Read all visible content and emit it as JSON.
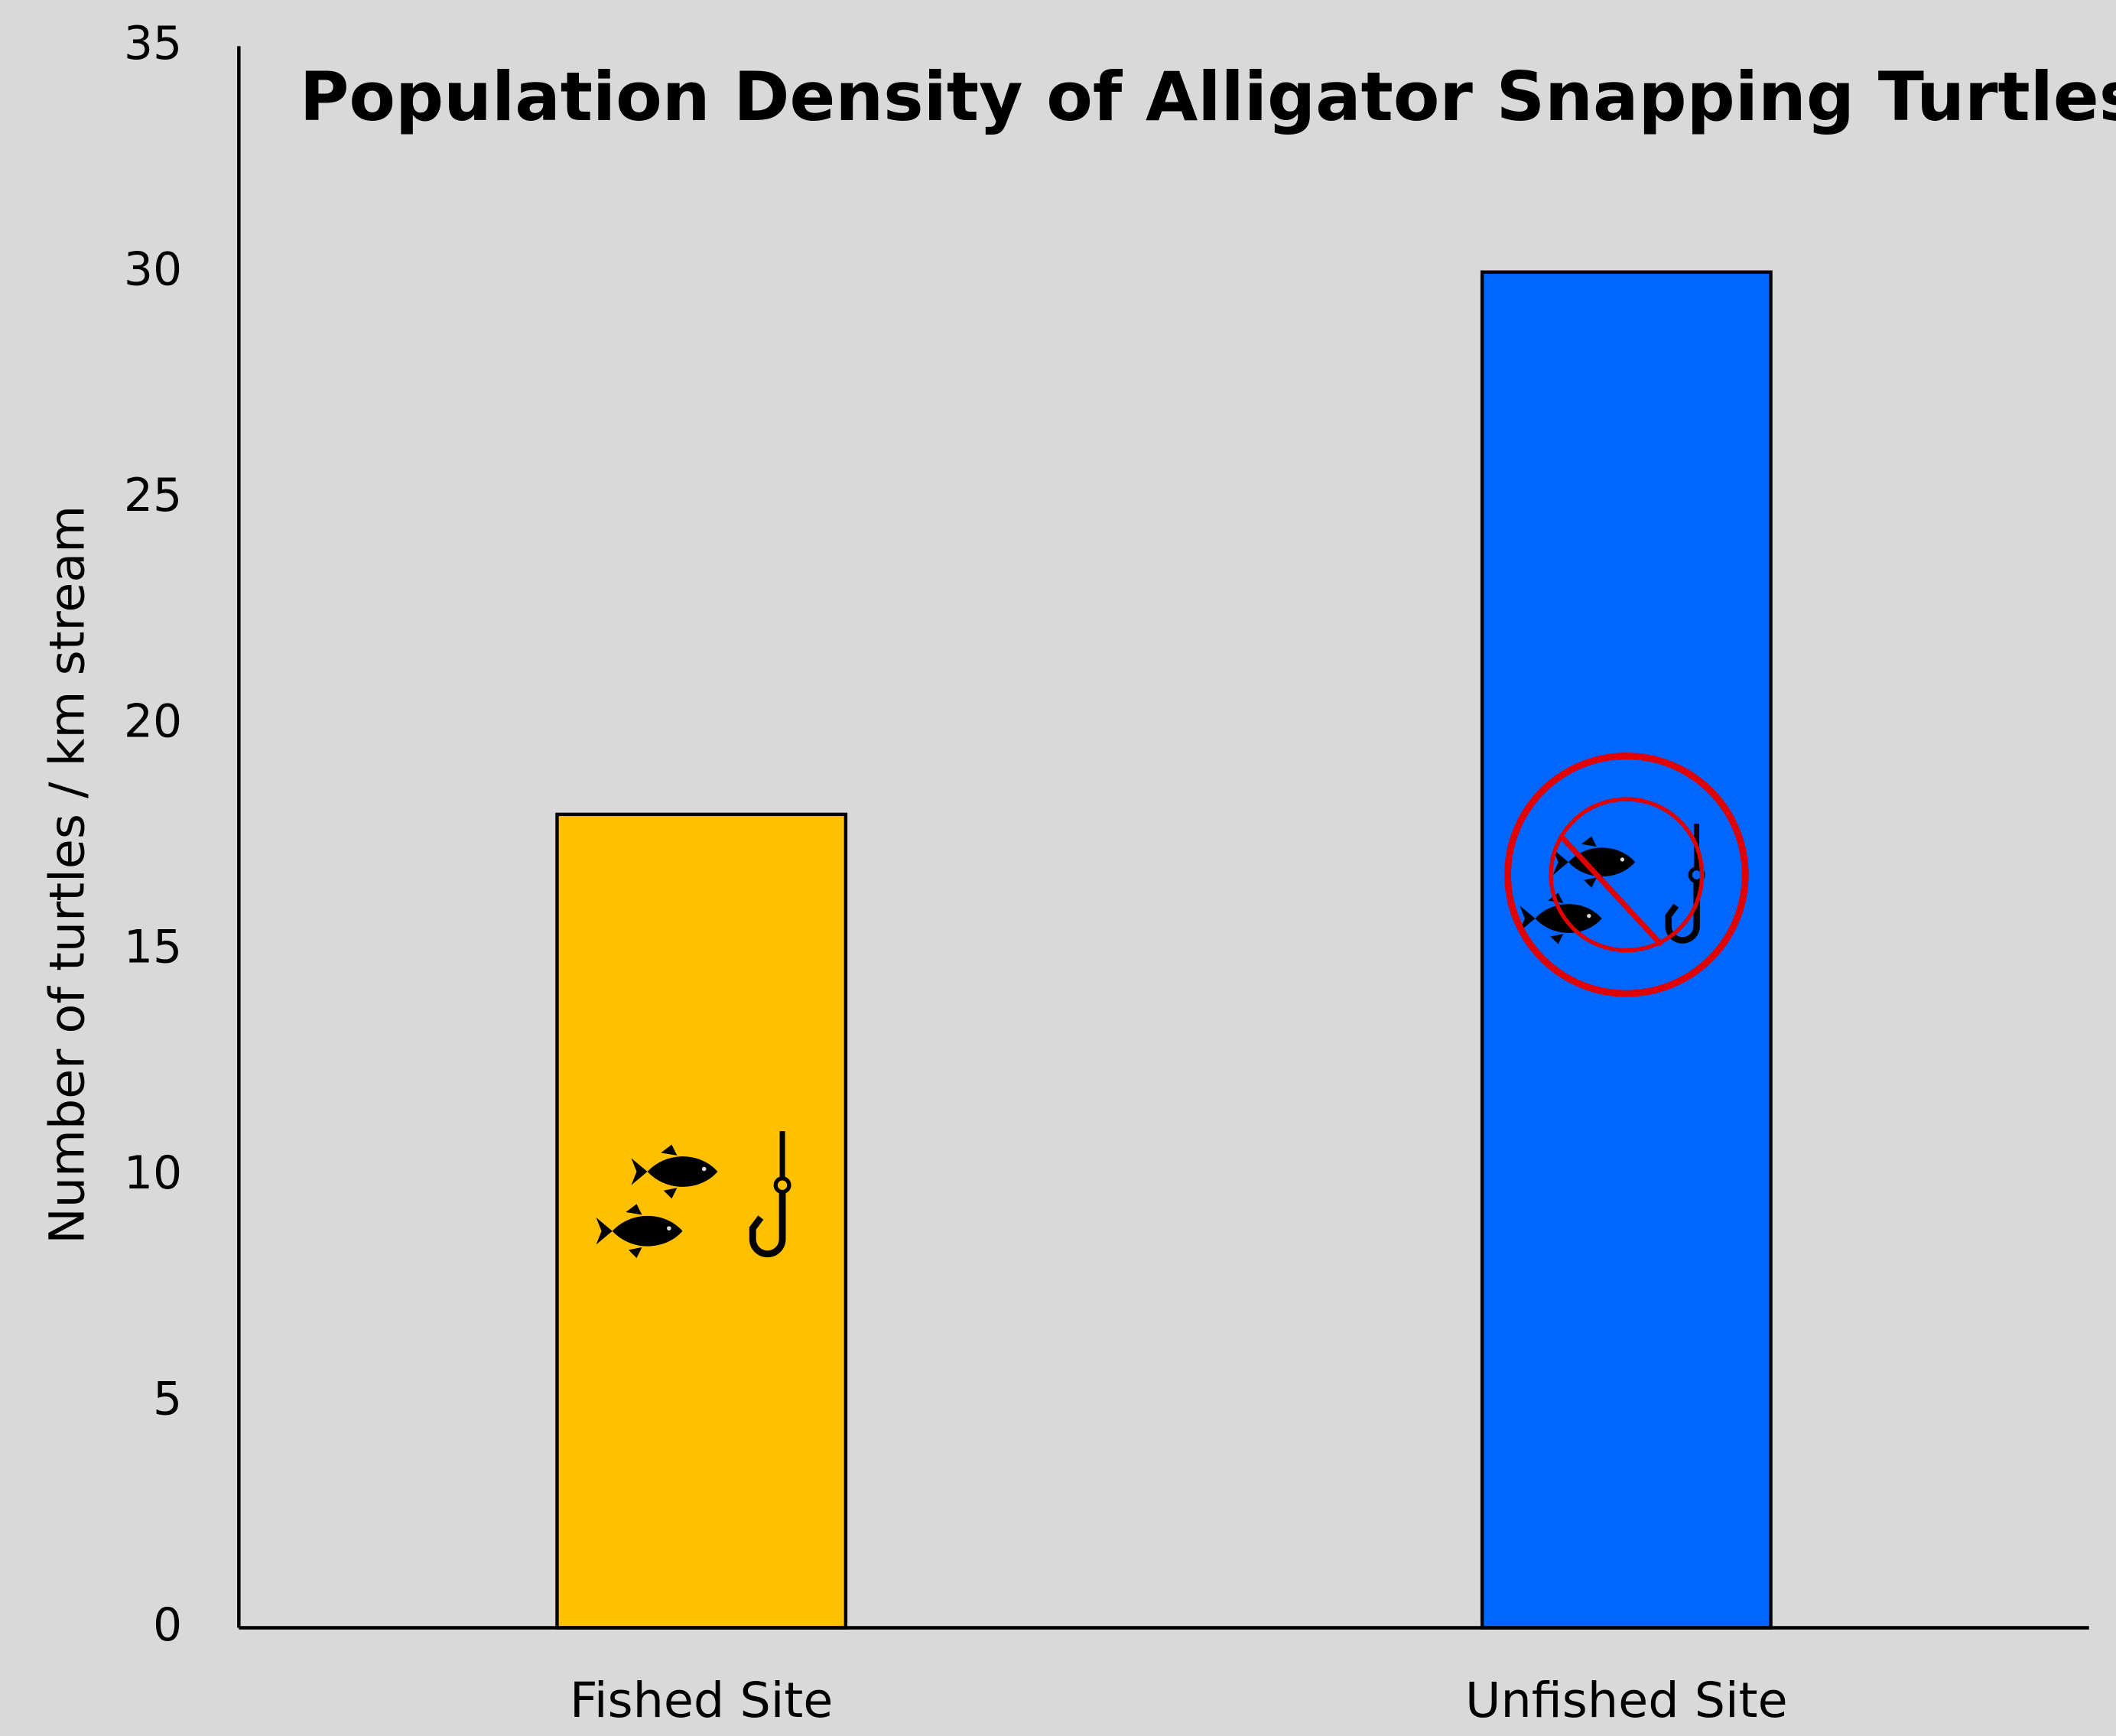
{
  "chart_data": {
    "type": "bar",
    "title": "Population Density of Alligator Snapping Turtles",
    "y_label": "Number of turtles / km stream",
    "categories": [
      "Fished Site",
      "Unfished Site"
    ],
    "values": [
      18,
      30
    ],
    "colors": [
      "#ffc000",
      "#0066ff"
    ],
    "ylim": [
      0,
      35
    ],
    "yticks": [
      0,
      5,
      10,
      15,
      20,
      25,
      30,
      35
    ],
    "grid": false
  }
}
